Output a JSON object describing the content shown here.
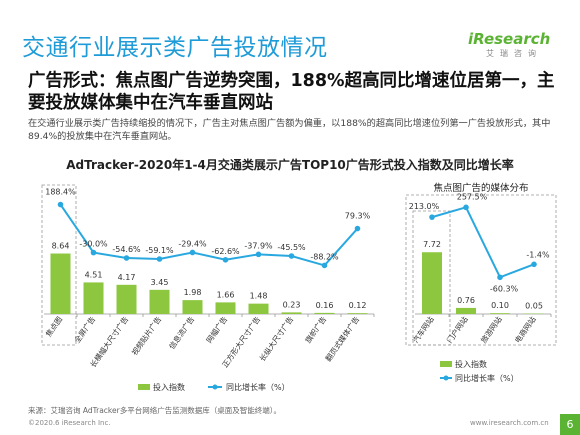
{
  "page": {
    "title": "交通行业展示类广告投放情况",
    "logo_text": "iResearch",
    "logo_sub": "艾瑞咨询",
    "headline": "广告形式：焦点图广告逆势突围，188%超高同比增速位居第一，主要投放媒体集中在汽车垂直网站",
    "description": "在交通行业展示类广告持续缩投的情况下，广告主对焦点图广告额为偏重，以188%的超高同比增速位列第一广告投放形式，其中89.4%的投放集中在汽车垂直网站。",
    "chart_title": "AdTracker-2020年1-4月交通类展示广告TOP10广告形式投入指数及同比增长率",
    "right_chart_title": "焦点图广告的媒体分布",
    "source": "来源：艾瑞咨询 AdTracker多平台网络广告监测数据库（桌面及智能终端）。",
    "copyright": "©2020.6 iResearch Inc.",
    "website": "www.iresearch.com.cn",
    "page_number": "6"
  },
  "colors": {
    "bar": "#8dc63f",
    "line": "#29a8e0",
    "title": "#1f9bd7",
    "brand": "#5bb333"
  },
  "chart_data": [
    {
      "type": "bar",
      "categories": [
        "焦点图",
        "全屏广告",
        "长横幅大尺寸广告",
        "视频贴片广告",
        "信息流广告",
        "网幅广告",
        "正方形大尺寸广告",
        "长纵大尺寸广告",
        "旗帜广告",
        "翻页式媒体广告"
      ],
      "series": [
        {
          "name": "投入指数",
          "type": "bar",
          "values": [
            8.64,
            4.51,
            4.17,
            3.45,
            1.98,
            1.66,
            1.48,
            0.23,
            0.16,
            0.12
          ],
          "labels": [
            "8.64",
            "4.51",
            "4.17",
            "3.45",
            "1.98",
            "1.66",
            "1.48",
            "0.23",
            "0.16",
            "0.12"
          ]
        },
        {
          "name": "同比增长率（%）",
          "type": "line",
          "values": [
            188.4,
            -30.0,
            -54.6,
            -59.1,
            -29.4,
            -62.6,
            -37.9,
            -45.5,
            -88.2,
            79.3
          ],
          "labels": [
            "188.4%",
            "-30.0%",
            "-54.6%",
            "-59.1%",
            "-29.4%",
            "-62.6%",
            "-37.9%",
            "-45.5%",
            "-88.2%",
            "79.3%"
          ]
        }
      ],
      "legend": "bottom"
    },
    {
      "type": "bar",
      "title": "焦点图广告的媒体分布",
      "categories": [
        "汽车网站",
        "门户网站",
        "旅游网站",
        "电商网站"
      ],
      "series": [
        {
          "name": "投入指数",
          "type": "bar",
          "values": [
            7.72,
            0.76,
            0.1,
            0.05
          ],
          "labels": [
            "7.72",
            "0.76",
            "0.10",
            "0.05"
          ]
        },
        {
          "name": "同比增长率（%）",
          "type": "line",
          "values": [
            213.0,
            257.5,
            -60.3,
            -1.4
          ],
          "labels": [
            "213.0%",
            "257.5%",
            "-60.3%",
            "-1.4%"
          ]
        }
      ],
      "legend": "bottom"
    }
  ]
}
